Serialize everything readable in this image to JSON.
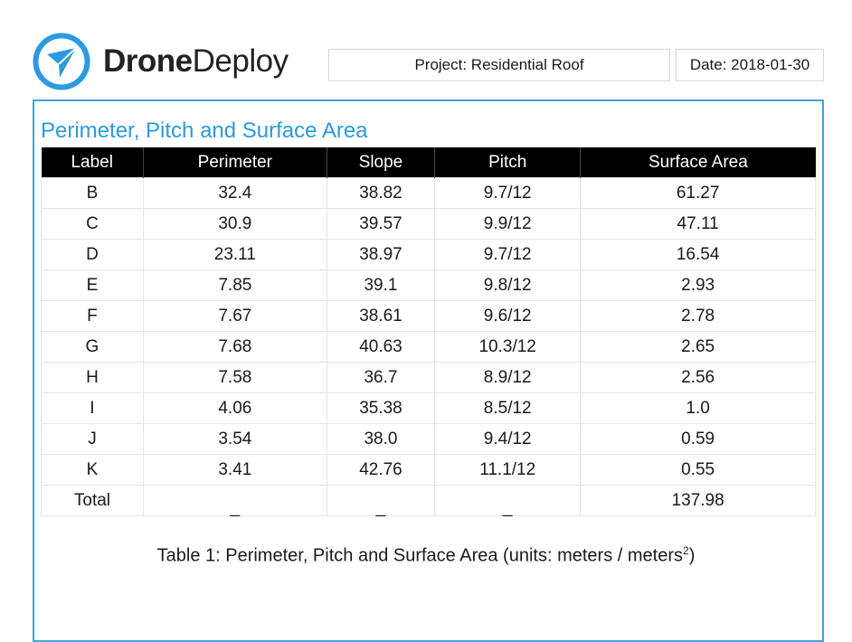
{
  "brand": {
    "bold": "Drone",
    "regular": "Deploy",
    "logo_icon": "dronedeploy-logo-icon",
    "accent_color": "#2b9ae0"
  },
  "header": {
    "project": "Project: Residential Roof",
    "date": "Date: 2018-01-30"
  },
  "section": {
    "title": "Perimeter, Pitch and Surface Area"
  },
  "table": {
    "headers": [
      "Label",
      "Perimeter",
      "Slope",
      "Pitch",
      "Surface Area"
    ],
    "rows": [
      [
        "B",
        "32.4",
        "38.82",
        "9.7/12",
        "61.27"
      ],
      [
        "C",
        "30.9",
        "39.57",
        "9.9/12",
        "47.11"
      ],
      [
        "D",
        "23.11",
        "38.97",
        "9.7/12",
        "16.54"
      ],
      [
        "E",
        "7.85",
        "39.1",
        "9.8/12",
        "2.93"
      ],
      [
        "F",
        "7.67",
        "38.61",
        "9.6/12",
        "2.78"
      ],
      [
        "G",
        "7.68",
        "40.63",
        "10.3/12",
        "2.65"
      ],
      [
        "H",
        "7.58",
        "36.7",
        "8.9/12",
        "2.56"
      ],
      [
        "I",
        "4.06",
        "35.38",
        "8.5/12",
        "1.0"
      ],
      [
        "J",
        "3.54",
        "38.0",
        "9.4/12",
        "0.59"
      ],
      [
        "K",
        "3.41",
        "42.76",
        "11.1/12",
        "0.55"
      ]
    ],
    "total": [
      "Total",
      "_",
      "_",
      "_",
      "137.98"
    ]
  },
  "caption": {
    "text": "Table 1: Perimeter, Pitch and Surface Area (units: meters / meters",
    "sup": "2",
    "end": ")"
  }
}
